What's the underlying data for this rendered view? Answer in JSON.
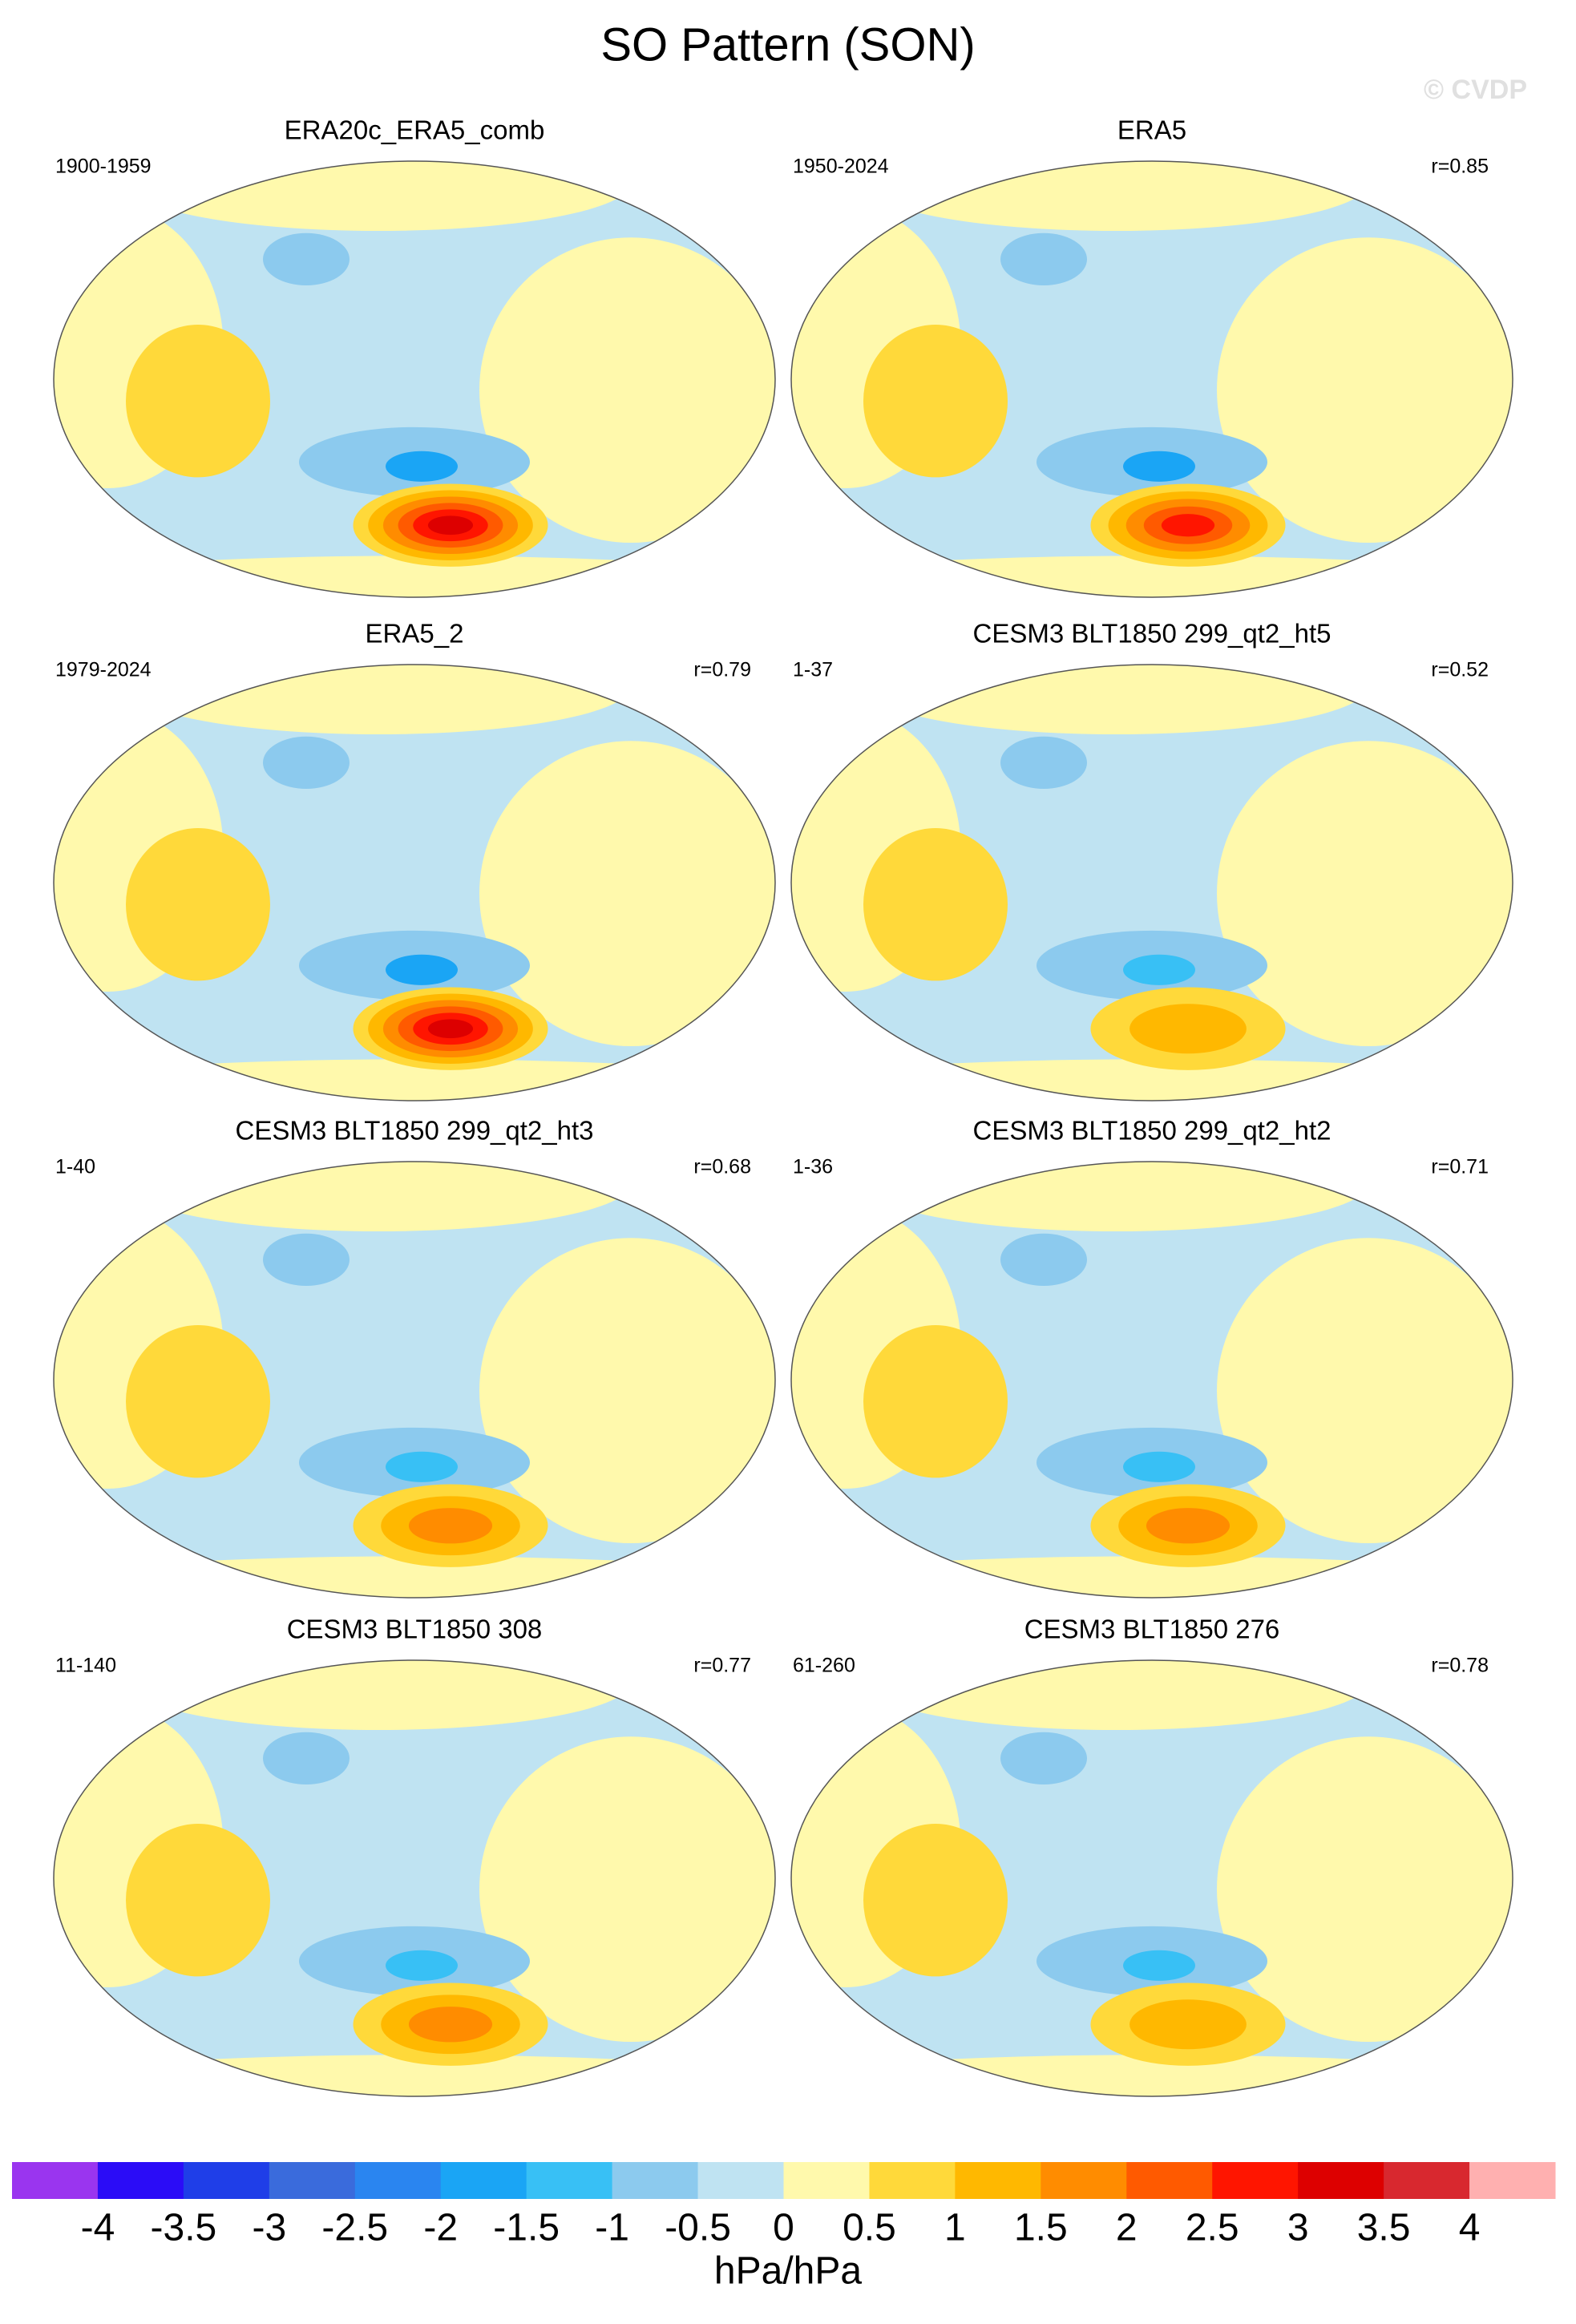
{
  "title": "SO Pattern (SON)",
  "watermark": "© CVDP",
  "panels": [
    {
      "title": "ERA20c_ERA5_comb",
      "period": "1900-1959"
    },
    {
      "title": "ERA5",
      "period": "1950-2024",
      "r": "r=0.85"
    },
    {
      "title": "ERA5_2",
      "period": "1979-2024",
      "r": "r=0.79"
    },
    {
      "title": "CESM3 BLT1850 299_qt2_ht5",
      "period": "1-37",
      "r": "r=0.52"
    },
    {
      "title": "CESM3 BLT1850 299_qt2_ht3",
      "period": "1-40",
      "r": "r=0.68"
    },
    {
      "title": "CESM3 BLT1850 299_qt2_ht2",
      "period": "1-36",
      "r": "r=0.71"
    },
    {
      "title": "CESM3 BLT1850 308",
      "period": "11-140",
      "r": "r=0.77"
    },
    {
      "title": "CESM3 BLT1850 276",
      "period": "61-260",
      "r": "r=0.78"
    }
  ],
  "colorbar": {
    "label": "hPa/hPa",
    "colors": [
      "#9a35ef",
      "#2b0cf7",
      "#1f3ee8",
      "#3a6bdc",
      "#2a85f0",
      "#1aa5f5",
      "#38c0f5",
      "#8ccaee",
      "#bfe3f2",
      "#fff9ac",
      "#ffd93a",
      "#ffb800",
      "#ff8c00",
      "#ff5a00",
      "#ff1500",
      "#dd0000",
      "#d8282f",
      "#ffb0b0"
    ],
    "ticks": [
      -4,
      -3.5,
      -3,
      -2.5,
      -2,
      -1.5,
      -1,
      -0.5,
      0,
      0.5,
      1,
      1.5,
      2,
      2.5,
      3,
      3.5,
      4
    ]
  }
}
